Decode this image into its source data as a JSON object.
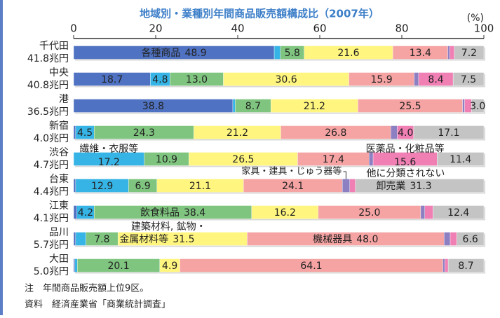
{
  "chart_data": {
    "type": "stacked_bar_horizontal",
    "title": "地域別・業種別年間商品販売額構成比（2007年）",
    "unit_label": "(%)",
    "categories": [
      "千代田",
      "中央",
      "港",
      "新宿",
      "渋谷",
      "台東",
      "江東",
      "品川",
      "大田"
    ],
    "category_totals": [
      "41.8兆円",
      "40.8兆円",
      "36.5兆円",
      "4.0兆円",
      "4.7兆円",
      "4.4兆円",
      "4.1兆円",
      "5.7兆円",
      "5.0兆円"
    ],
    "xlim": [
      0,
      100
    ],
    "xticks": [
      0,
      20,
      40,
      60,
      80,
      100
    ],
    "series": [
      {
        "name": "各種商品",
        "color": "#4f72c2",
        "values": [
          48.9,
          18.7,
          38.8,
          0.5,
          0,
          0.5,
          0.8,
          0.5,
          0.3
        ],
        "value_labels": [
          "48.9",
          "18.7",
          "38.8",
          null,
          null,
          null,
          null,
          null,
          null
        ]
      },
      {
        "name": "繊維・衣服等",
        "color": "#36b4e6",
        "values": [
          1.5,
          4.8,
          0.6,
          4.5,
          17.2,
          12.9,
          4.2,
          2.5,
          0.6
        ],
        "value_labels": [
          null,
          "4.8",
          null,
          "4.5",
          "17.2",
          "12.9",
          "4.2",
          null,
          null
        ]
      },
      {
        "name": "飲食料品",
        "color": "#7fc57f",
        "values": [
          5.8,
          13.0,
          8.7,
          24.3,
          10.9,
          6.9,
          38.4,
          7.8,
          20.1
        ],
        "value_labels": [
          "5.8",
          "13.0",
          "8.7",
          "24.3",
          "10.9",
          "6.9",
          "38.4",
          "7.8",
          "20.1"
        ]
      },
      {
        "name": "建築材料, 鉱物・金属材料等",
        "color": "#fff57f",
        "values": [
          21.6,
          30.6,
          21.2,
          21.2,
          26.5,
          21.1,
          16.2,
          31.5,
          4.9
        ],
        "value_labels": [
          "21.6",
          "30.6",
          "21.2",
          "21.2",
          "26.5",
          "21.1",
          "16.2",
          "31.5",
          "4.9"
        ]
      },
      {
        "name": "機械器具",
        "color": "#f5a3a3",
        "values": [
          13.4,
          15.9,
          25.5,
          26.8,
          17.4,
          24.1,
          25.0,
          48.0,
          64.1
        ],
        "value_labels": [
          "13.4",
          "15.9",
          "25.5",
          "26.8",
          "17.4",
          "24.1",
          "25.0",
          "48.0",
          "64.1"
        ]
      },
      {
        "name": "家具・建具・じゅう器等",
        "color": "#8c7fc2",
        "values": [
          0.5,
          1.1,
          0.5,
          1.6,
          1.0,
          1.8,
          1.0,
          1.5,
          0.5
        ],
        "value_labels": [
          null,
          null,
          null,
          null,
          null,
          null,
          null,
          null,
          null
        ]
      },
      {
        "name": "医薬品・化粧品等",
        "color": "#f07fb4",
        "values": [
          1.1,
          8.4,
          1.7,
          4.0,
          15.6,
          1.4,
          2.0,
          1.6,
          0.8
        ],
        "value_labels": [
          null,
          "8.4",
          null,
          "4.0",
          "15.6",
          null,
          null,
          null,
          null
        ]
      },
      {
        "name": "他に分類されない卸売業",
        "color": "#c4c4c4",
        "values": [
          7.2,
          7.5,
          3.0,
          17.1,
          11.4,
          31.3,
          12.4,
          6.6,
          8.7
        ],
        "value_labels": [
          "7.2",
          "7.5",
          "3.0",
          "17.1",
          "11.4",
          "31.3",
          "12.4",
          "6.6",
          "8.7"
        ]
      }
    ],
    "notes": [
      "注　年間商品販売額上位9区。",
      "資料　経済産業省「商業統計調査」"
    ]
  }
}
